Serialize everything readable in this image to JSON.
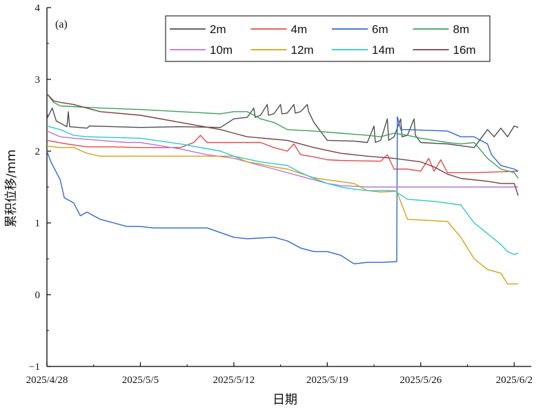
{
  "chart_data": {
    "type": "line",
    "panel_tag": "(a)",
    "xlabel": "日期",
    "ylabel": "累积位移/mm",
    "x_range_days": [
      0,
      35
    ],
    "ylim": [
      -1,
      4
    ],
    "y_ticks": [
      -1,
      0,
      1,
      2,
      3,
      4
    ],
    "y_tick_labels": [
      "−1",
      "0",
      "1",
      "2",
      "3",
      "4"
    ],
    "x_ticks": [
      {
        "label": "2025/4/28",
        "day": 0
      },
      {
        "label": "2025/5/5",
        "day": 7
      },
      {
        "label": "2025/5/12",
        "day": 14
      },
      {
        "label": "2025/5/19",
        "day": 21
      },
      {
        "label": "2025/5/26",
        "day": 28
      },
      {
        "label": "2025/6/2",
        "day": 35
      }
    ],
    "legend_position": "top-right",
    "series": [
      {
        "name": "2m",
        "color": "#4d4d4d",
        "points": [
          [
            0,
            2.45
          ],
          [
            0.4,
            2.6
          ],
          [
            0.7,
            2.42
          ],
          [
            1.5,
            2.34
          ],
          [
            1.6,
            2.55
          ],
          [
            1.7,
            2.34
          ],
          [
            3,
            2.32
          ],
          [
            3.2,
            2.35
          ],
          [
            5,
            2.34
          ],
          [
            7,
            2.33
          ],
          [
            10,
            2.34
          ],
          [
            13,
            2.33
          ],
          [
            14,
            2.45
          ],
          [
            15,
            2.47
          ],
          [
            15.5,
            2.6
          ],
          [
            15.6,
            2.47
          ],
          [
            16,
            2.5
          ],
          [
            16.5,
            2.65
          ],
          [
            16.6,
            2.5
          ],
          [
            17,
            2.52
          ],
          [
            17.5,
            2.65
          ],
          [
            17.6,
            2.52
          ],
          [
            18,
            2.53
          ],
          [
            18.5,
            2.65
          ],
          [
            18.6,
            2.53
          ],
          [
            19,
            2.55
          ],
          [
            19.5,
            2.65
          ],
          [
            19.6,
            2.55
          ],
          [
            20,
            2.4
          ],
          [
            21,
            2.15
          ],
          [
            23,
            2.14
          ],
          [
            24,
            2.12
          ],
          [
            24.5,
            2.35
          ],
          [
            24.6,
            2.12
          ],
          [
            25,
            2.15
          ],
          [
            25.5,
            2.45
          ],
          [
            25.6,
            2.15
          ],
          [
            26,
            2.2
          ],
          [
            26.5,
            2.45
          ],
          [
            26.6,
            2.2
          ],
          [
            27,
            2.22
          ],
          [
            27.5,
            2.45
          ],
          [
            27.6,
            2.22
          ],
          [
            28,
            2.12
          ],
          [
            30,
            2.1
          ],
          [
            32,
            2.05
          ],
          [
            33,
            2.3
          ],
          [
            33.5,
            2.2
          ],
          [
            34,
            2.32
          ],
          [
            34.5,
            2.2
          ],
          [
            35,
            2.35
          ],
          [
            35.3,
            2.33
          ]
        ]
      },
      {
        "name": "4m",
        "color": "#e34a4a",
        "points": [
          [
            0,
            2.15
          ],
          [
            1.5,
            2.1
          ],
          [
            3,
            2.06
          ],
          [
            5,
            2.06
          ],
          [
            7,
            2.05
          ],
          [
            10,
            2.05
          ],
          [
            11,
            2.12
          ],
          [
            11.5,
            2.22
          ],
          [
            12,
            2.12
          ],
          [
            14,
            2.12
          ],
          [
            16,
            2.12
          ],
          [
            17,
            2.05
          ],
          [
            18,
            2.0
          ],
          [
            18.5,
            2.1
          ],
          [
            19,
            1.95
          ],
          [
            20,
            1.92
          ],
          [
            21,
            1.88
          ],
          [
            22,
            1.87
          ],
          [
            25,
            1.86
          ],
          [
            25.5,
            1.95
          ],
          [
            26,
            1.75
          ],
          [
            27,
            1.75
          ],
          [
            28,
            1.72
          ],
          [
            28.6,
            1.9
          ],
          [
            29,
            1.72
          ],
          [
            29.5,
            1.88
          ],
          [
            30,
            1.7
          ],
          [
            32,
            1.7
          ],
          [
            35.3,
            1.72
          ]
        ]
      },
      {
        "name": "6m",
        "color": "#2f65cc",
        "points": [
          [
            0,
            2.0
          ],
          [
            0.3,
            1.85
          ],
          [
            1,
            1.6
          ],
          [
            1.3,
            1.35
          ],
          [
            2,
            1.28
          ],
          [
            2.5,
            1.1
          ],
          [
            3,
            1.15
          ],
          [
            3.5,
            1.1
          ],
          [
            4,
            1.05
          ],
          [
            5,
            1.0
          ],
          [
            6,
            0.95
          ],
          [
            7,
            0.95
          ],
          [
            8,
            0.93
          ],
          [
            10,
            0.93
          ],
          [
            12,
            0.93
          ],
          [
            14,
            0.8
          ],
          [
            15,
            0.78
          ],
          [
            17,
            0.8
          ],
          [
            18,
            0.75
          ],
          [
            19,
            0.65
          ],
          [
            20,
            0.6
          ],
          [
            21,
            0.6
          ],
          [
            22,
            0.55
          ],
          [
            23,
            0.43
          ],
          [
            24,
            0.45
          ],
          [
            25,
            0.45
          ],
          [
            26.2,
            0.46
          ],
          [
            26.25,
            2.48
          ],
          [
            26.5,
            2.3
          ],
          [
            27,
            2.3
          ],
          [
            30,
            2.28
          ],
          [
            31,
            2.2
          ],
          [
            32,
            2.2
          ],
          [
            33,
            2.1
          ],
          [
            33.3,
            1.95
          ],
          [
            34,
            1.8
          ],
          [
            35,
            1.75
          ],
          [
            35.3,
            1.72
          ]
        ]
      },
      {
        "name": "8m",
        "color": "#3aa05a",
        "points": [
          [
            0,
            2.8
          ],
          [
            0.5,
            2.68
          ],
          [
            1,
            2.63
          ],
          [
            2,
            2.62
          ],
          [
            4,
            2.6
          ],
          [
            7,
            2.58
          ],
          [
            10,
            2.55
          ],
          [
            13,
            2.52
          ],
          [
            14,
            2.55
          ],
          [
            15,
            2.55
          ],
          [
            16,
            2.45
          ],
          [
            17,
            2.4
          ],
          [
            18,
            2.3
          ],
          [
            20,
            2.28
          ],
          [
            22,
            2.25
          ],
          [
            24,
            2.22
          ],
          [
            25,
            2.2
          ],
          [
            26,
            2.25
          ],
          [
            27,
            2.22
          ],
          [
            28,
            2.18
          ],
          [
            30,
            2.12
          ],
          [
            31,
            2.1
          ],
          [
            32,
            2.12
          ],
          [
            33,
            1.9
          ],
          [
            34,
            1.75
          ],
          [
            35,
            1.7
          ],
          [
            35.3,
            1.62
          ]
        ]
      },
      {
        "name": "10m",
        "color": "#b377d9",
        "points": [
          [
            0,
            2.28
          ],
          [
            1,
            2.2
          ],
          [
            2,
            2.18
          ],
          [
            4,
            2.15
          ],
          [
            6,
            2.12
          ],
          [
            7,
            2.12
          ],
          [
            10,
            2.03
          ],
          [
            12,
            1.95
          ],
          [
            14,
            1.9
          ],
          [
            15,
            1.85
          ],
          [
            16,
            1.8
          ],
          [
            17,
            1.75
          ],
          [
            18,
            1.7
          ],
          [
            19,
            1.65
          ],
          [
            20,
            1.6
          ],
          [
            21,
            1.55
          ],
          [
            22,
            1.52
          ],
          [
            24,
            1.5
          ],
          [
            26,
            1.5
          ],
          [
            28,
            1.5
          ],
          [
            30,
            1.5
          ],
          [
            32,
            1.5
          ],
          [
            35.3,
            1.5
          ]
        ]
      },
      {
        "name": "12m",
        "color": "#d4a017",
        "points": [
          [
            0,
            2.07
          ],
          [
            1,
            2.05
          ],
          [
            2,
            2.05
          ],
          [
            3,
            1.97
          ],
          [
            4,
            1.93
          ],
          [
            7,
            1.93
          ],
          [
            10,
            1.93
          ],
          [
            14,
            1.93
          ],
          [
            15,
            1.85
          ],
          [
            16,
            1.82
          ],
          [
            17,
            1.78
          ],
          [
            18,
            1.75
          ],
          [
            20,
            1.63
          ],
          [
            21,
            1.6
          ],
          [
            23,
            1.55
          ],
          [
            24,
            1.45
          ],
          [
            25,
            1.43
          ],
          [
            26.2,
            1.44
          ],
          [
            27,
            1.05
          ],
          [
            30,
            1.02
          ],
          [
            31,
            0.8
          ],
          [
            32,
            0.5
          ],
          [
            33,
            0.35
          ],
          [
            34,
            0.3
          ],
          [
            34.5,
            0.15
          ],
          [
            35.3,
            0.15
          ]
        ]
      },
      {
        "name": "14m",
        "color": "#2fc7c7",
        "points": [
          [
            0,
            2.35
          ],
          [
            1,
            2.3
          ],
          [
            2,
            2.22
          ],
          [
            3,
            2.2
          ],
          [
            7,
            2.18
          ],
          [
            10,
            2.1
          ],
          [
            13,
            2.0
          ],
          [
            14,
            1.93
          ],
          [
            16,
            1.85
          ],
          [
            18,
            1.8
          ],
          [
            19,
            1.7
          ],
          [
            20,
            1.62
          ],
          [
            21,
            1.55
          ],
          [
            22,
            1.5
          ],
          [
            23,
            1.47
          ],
          [
            24,
            1.45
          ],
          [
            26,
            1.45
          ],
          [
            27,
            1.33
          ],
          [
            29,
            1.3
          ],
          [
            31,
            1.25
          ],
          [
            32,
            1.0
          ],
          [
            33,
            0.85
          ],
          [
            34,
            0.7
          ],
          [
            34.5,
            0.6
          ],
          [
            35,
            0.56
          ],
          [
            35.3,
            0.58
          ]
        ]
      },
      {
        "name": "16m",
        "color": "#7a3f3f",
        "points": [
          [
            0,
            2.8
          ],
          [
            0.5,
            2.7
          ],
          [
            1,
            2.68
          ],
          [
            2,
            2.65
          ],
          [
            4,
            2.55
          ],
          [
            7,
            2.5
          ],
          [
            10,
            2.4
          ],
          [
            13,
            2.3
          ],
          [
            14,
            2.25
          ],
          [
            15,
            2.2
          ],
          [
            18,
            2.15
          ],
          [
            20,
            2.05
          ],
          [
            22,
            1.97
          ],
          [
            24,
            1.93
          ],
          [
            26,
            1.9
          ],
          [
            28,
            1.85
          ],
          [
            29,
            1.78
          ],
          [
            30,
            1.68
          ],
          [
            31,
            1.62
          ],
          [
            33,
            1.58
          ],
          [
            34,
            1.55
          ],
          [
            35,
            1.55
          ],
          [
            35.3,
            1.38
          ]
        ]
      }
    ]
  }
}
